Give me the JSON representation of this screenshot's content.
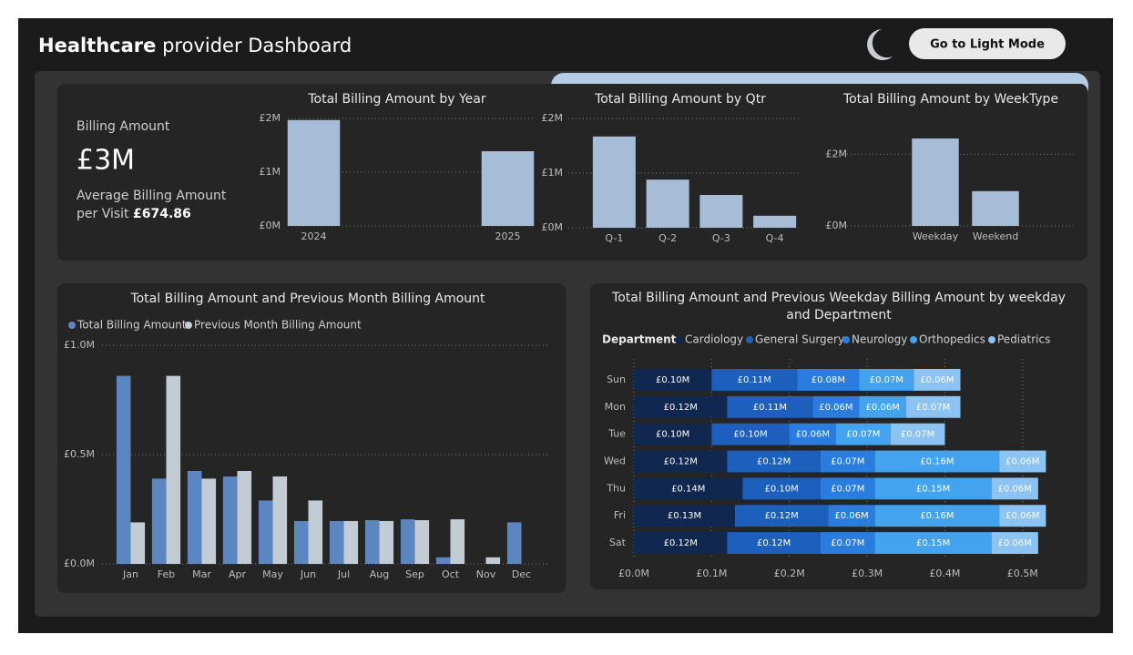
{
  "header": {
    "title_bold": "Healthcare",
    "title_rest": "provider Dashboard",
    "button": "Go to Light Mode"
  },
  "kpi": {
    "title": "Billing Amount",
    "value": "£3M",
    "sub": "Average Billing Amount per Visit",
    "avg": "£674.86"
  },
  "chart_data": [
    {
      "type": "bar",
      "title": "Total Billing Amount by Year",
      "categories": [
        "2024",
        "2025"
      ],
      "values": [
        1.97,
        1.39
      ],
      "color": "#a7bcd6",
      "ylim": [
        0,
        2
      ],
      "yticks": [
        {
          "value": 0,
          "label": "£0M"
        },
        {
          "value": 1,
          "label": "£1M"
        },
        {
          "value": 2,
          "label": "£2M"
        }
      ],
      "grid": true
    },
    {
      "type": "bar",
      "title": "Total Billing Amount by Qtr",
      "categories": [
        "Q-1",
        "Q-2",
        "Q-3",
        "Q-4"
      ],
      "values": [
        1.67,
        0.88,
        0.6,
        0.22
      ],
      "color": "#a7bcd6",
      "ylim": [
        0,
        2
      ],
      "yticks": [
        {
          "value": 0,
          "label": "£0M"
        },
        {
          "value": 1,
          "label": "£1M"
        },
        {
          "value": 2,
          "label": "£2M"
        }
      ],
      "grid": true
    },
    {
      "type": "bar",
      "title": "Total Billing Amount by WeekType",
      "categories": [
        "Weekday",
        "Weekend"
      ],
      "values": [
        2.44,
        0.97
      ],
      "color": "#a7bcd6",
      "ylim": [
        0,
        3
      ],
      "yticks": [
        {
          "value": 0,
          "label": "£0M"
        },
        {
          "value": 2,
          "label": "£2M"
        }
      ],
      "grid": true
    },
    {
      "type": "bar",
      "title": "Total Billing Amount and Previous Month Billing Amount",
      "categories": [
        "Jan",
        "Feb",
        "Mar",
        "Apr",
        "May",
        "Jun",
        "Jul",
        "Aug",
        "Sep",
        "Oct",
        "Nov",
        "Dec"
      ],
      "series": [
        {
          "name": "Total Billing Amount",
          "color": "#5b86bf",
          "values": [
            0.86,
            0.39,
            0.425,
            0.4,
            0.29,
            0.196,
            0.196,
            0.2,
            0.204,
            0.03,
            0,
            0.19
          ]
        },
        {
          "name": "Previous Month Billing Amount",
          "color": "#c3cbd4",
          "values": [
            0.19,
            0.86,
            0.39,
            0.425,
            0.4,
            0.29,
            0.196,
            0.196,
            0.2,
            0.204,
            0.03,
            0
          ]
        }
      ],
      "ylim": [
        0,
        1
      ],
      "yticks": [
        {
          "value": 0,
          "label": "£0.0M"
        },
        {
          "value": 0.5,
          "label": "£0.5M"
        },
        {
          "value": 1,
          "label": "£1.0M"
        }
      ],
      "grid": true,
      "legend": "top-left"
    },
    {
      "type": "hbar",
      "stacked": true,
      "title": "Total Billing Amount and Previous Weekday Billing Amount by weekday and Department",
      "legend_title": "Department",
      "categories": [
        "Sun",
        "Mon",
        "Tue",
        "Wed",
        "Thu",
        "Fri",
        "Sat"
      ],
      "series": [
        {
          "name": "Cardiology",
          "color": "#10284f",
          "values": [
            0.1,
            0.12,
            0.1,
            0.12,
            0.14,
            0.13,
            0.12
          ],
          "value_labels": [
            "£0.10M",
            "£0.12M",
            "£0.10M",
            "£0.12M",
            "£0.14M",
            "£0.13M",
            "£0.12M"
          ]
        },
        {
          "name": "General Surgery",
          "color": "#1c5fbd",
          "values": [
            0.11,
            0.11,
            0.1,
            0.12,
            0.1,
            0.12,
            0.12
          ],
          "value_labels": [
            "£0.11M",
            "£0.11M",
            "£0.10M",
            "£0.12M",
            "£0.10M",
            "£0.12M",
            "£0.12M"
          ]
        },
        {
          "name": "Neurology",
          "color": "#2a7ddf",
          "values": [
            0.08,
            0.06,
            0.06,
            0.07,
            0.07,
            0.06,
            0.07
          ],
          "value_labels": [
            "£0.08M",
            "£0.06M",
            "£0.06M",
            "£0.07M",
            "£0.07M",
            "£0.06M",
            "£0.07M"
          ]
        },
        {
          "name": "Orthopedics",
          "color": "#44a3ef",
          "values": [
            0.07,
            0.06,
            0.07,
            0.16,
            0.15,
            0.16,
            0.15
          ],
          "value_labels": [
            "£0.07M",
            "£0.06M",
            "£0.07M",
            "£0.16M",
            "£0.15M",
            "£0.16M",
            "£0.15M"
          ]
        },
        {
          "name": "Pediatrics",
          "color": "#8cc3f3",
          "values": [
            0.06,
            0.07,
            0.07,
            0.06,
            0.06,
            0.06,
            0.06
          ],
          "value_labels": [
            "£0.06M",
            "£0.07M",
            "£0.07M",
            "£0.06M",
            "£0.06M",
            "£0.06M",
            "£0.06M"
          ]
        }
      ],
      "xlim": [
        0,
        0.56
      ],
      "xticks": [
        {
          "value": 0,
          "label": "£0.0M"
        },
        {
          "value": 0.1,
          "label": "£0.1M"
        },
        {
          "value": 0.2,
          "label": "£0.2M"
        },
        {
          "value": 0.3,
          "label": "£0.3M"
        },
        {
          "value": 0.4,
          "label": "£0.4M"
        },
        {
          "value": 0.5,
          "label": "£0.5M"
        }
      ],
      "grid": true,
      "legend": "top-left"
    }
  ]
}
